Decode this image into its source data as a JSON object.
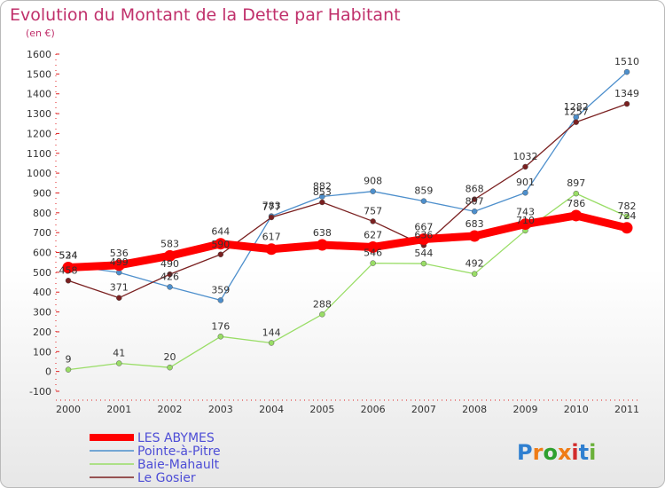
{
  "chart_data": {
    "type": "line",
    "title": "Evolution du Montant de la Dette par Habitant",
    "subtitle": "(en €)",
    "categories": [
      "2000",
      "2001",
      "2002",
      "2003",
      "2004",
      "2005",
      "2006",
      "2007",
      "2008",
      "2009",
      "2010",
      "2011"
    ],
    "yticks": [
      -100,
      0,
      100,
      200,
      300,
      400,
      500,
      600,
      700,
      800,
      900,
      1000,
      1100,
      1200,
      1300,
      1400,
      1500,
      1600
    ],
    "ylim": [
      -100,
      1600
    ],
    "grid": false,
    "legend_position": "bottom-left",
    "series": [
      {
        "name": "LES ABYMES",
        "color": "#ff0000",
        "values": [
          524,
          536,
          583,
          644,
          617,
          638,
          627,
          667,
          683,
          743,
          786,
          724
        ]
      },
      {
        "name": "Pointe-à-Pitre",
        "color": "#4d8fcc",
        "values": [
          534,
          499,
          426,
          359,
          783,
          882,
          908,
          859,
          807,
          901,
          1282,
          1510
        ]
      },
      {
        "name": "Baie-Mahault",
        "color": "#99dd66",
        "values": [
          9,
          41,
          20,
          176,
          144,
          288,
          546,
          544,
          492,
          710,
          897,
          782
        ]
      },
      {
        "name": "Le Gosier",
        "color": "#7a2020",
        "values": [
          458,
          371,
          490,
          590,
          777,
          853,
          757,
          636,
          868,
          1032,
          1257,
          1349
        ]
      }
    ]
  },
  "brand": {
    "logo_text": "Proxiti",
    "letter_colors": [
      "#2f7fd0",
      "#ef7c16",
      "#2fa02f",
      "#ef7c16",
      "#d22b2b",
      "#2f7fd0",
      "#6ab03a"
    ]
  }
}
